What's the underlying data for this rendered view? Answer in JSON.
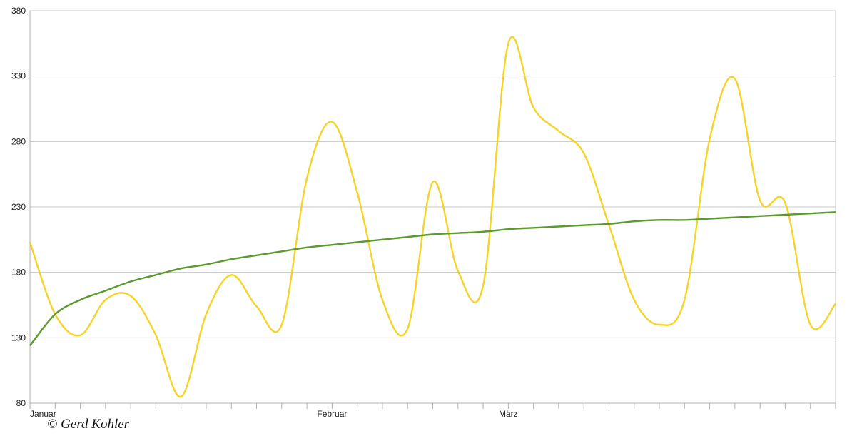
{
  "chart_data": {
    "type": "line",
    "categories": [
      "Januar",
      null,
      null,
      null,
      null,
      null,
      null,
      null,
      null,
      null,
      null,
      null,
      "Februar",
      null,
      null,
      null,
      null,
      null,
      null,
      "März",
      null,
      null,
      null,
      null,
      null,
      null,
      null,
      null,
      null,
      null,
      null,
      null,
      null
    ],
    "series": [
      {
        "color": "#f5d327",
        "values": [
          203,
          148,
          132,
          159,
          162,
          132,
          85,
          148,
          178,
          154,
          140,
          252,
          295,
          241,
          159,
          137,
          249,
          181,
          170,
          355,
          306,
          288,
          271,
          216,
          159,
          140,
          159,
          282,
          328,
          235,
          233,
          140,
          156
        ]
      },
      {
        "color": "#5b9a2c",
        "values": [
          124,
          148,
          159,
          166,
          173,
          178,
          183,
          186,
          190,
          193,
          196,
          199,
          201,
          203,
          205,
          207,
          209,
          210,
          211,
          213,
          214,
          215,
          216,
          217,
          219,
          220,
          220,
          221,
          222,
          223,
          224,
          225,
          226
        ]
      }
    ],
    "ylim": [
      80,
      380
    ],
    "yticks": [
      80,
      130,
      180,
      230,
      280,
      330,
      380
    ],
    "grid": true
  },
  "watermark": "© Gerd Kohler"
}
